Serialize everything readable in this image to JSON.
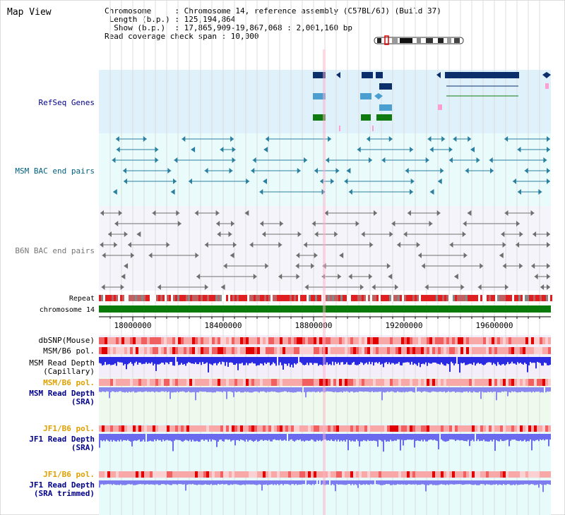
{
  "view": {
    "title": "Map View",
    "info_lines": [
      "Chromosome     : Chromosome 14, reference assembly (C57BL/6J) (Build 37)",
      " Length (b.p.) : 125,194,864",
      "  Show (b.p.)  : 17,865,909-19,867,068 : 2,001,160 bp",
      "Read coverage check span : 10,000"
    ]
  },
  "tracks": {
    "refseq": "RefSeq Genes",
    "msm_bac": "MSM BAC end pairs",
    "b6n_bac": "B6N BAC end pairs",
    "repeat": "Repeat",
    "chromosome": "chromosome 14",
    "dbsnp": "dbSNP(Mouse)",
    "msm_pol": "MSM/B6 pol.",
    "msm_depth_cap_1": "MSM Read Depth",
    "msm_depth_cap_2": "(Capillary)",
    "msm_pol_2": "MSM/B6 pol.",
    "msm_depth_sra_1": "MSM Read Depth",
    "msm_depth_sra_2": "(SRA)",
    "jf1_pol": "JF1/B6 pol.",
    "jf1_depth_1": "JF1 Read Depth",
    "jf1_depth_2": "(SRA)",
    "jf1_pol_2": "JF1/B6 pol.",
    "jf1_trim_1": "JF1 Read Depth",
    "jf1_trim_2": "(SRA trimmed)"
  },
  "axis": {
    "ticks": [
      "18000000",
      "18400000",
      "18800000",
      "19200000",
      "19600000"
    ]
  },
  "colors": {
    "gene_dark": "#0b2f6b",
    "gene_light": "#4a9fd0",
    "gene_green": "#0f7a0f",
    "chromosome": "#0a7a0a",
    "label_blue": "#00008b",
    "label_teal": "#006080",
    "label_orange": "#e0a000",
    "label_gray": "#777777"
  }
}
